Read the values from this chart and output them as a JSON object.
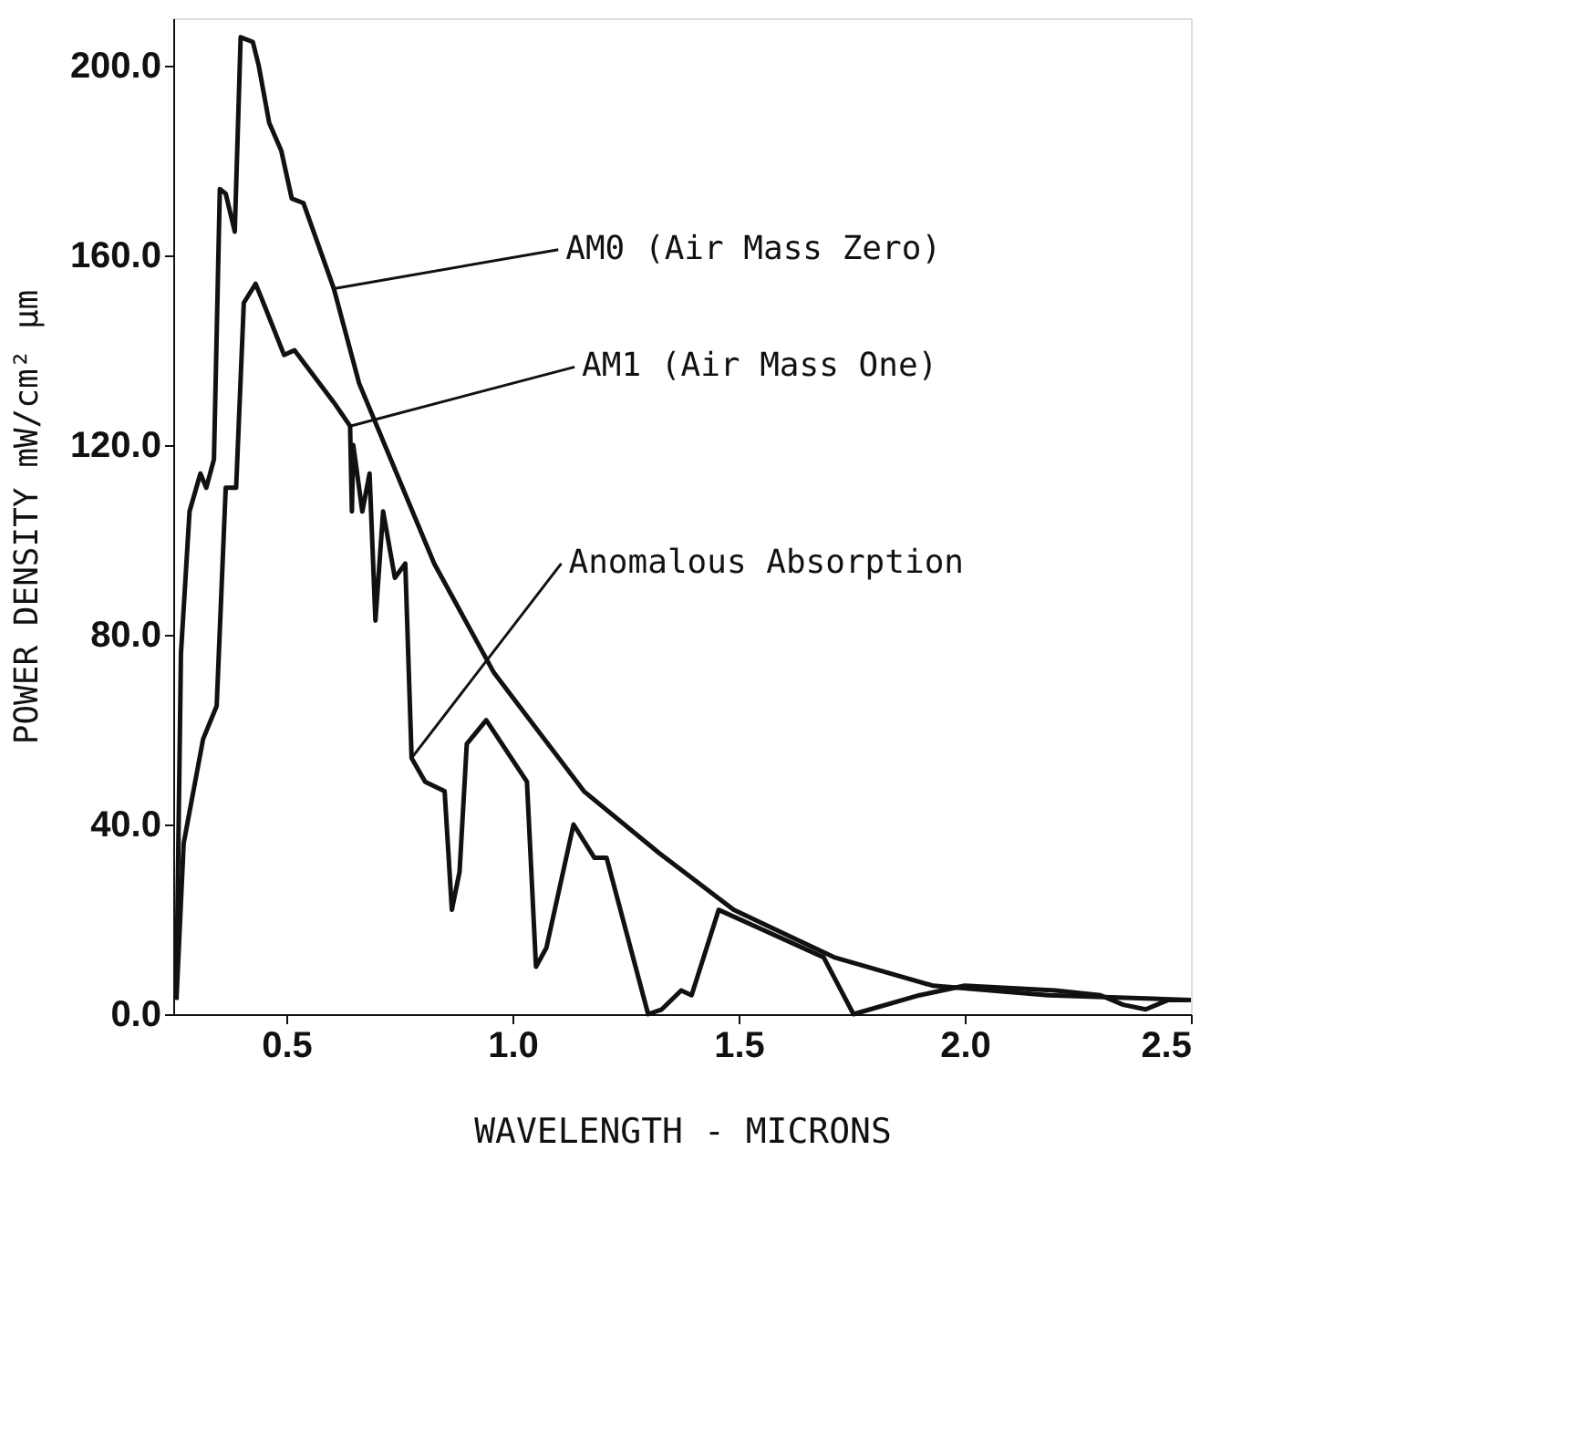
{
  "chart_data": {
    "type": "line",
    "xlabel": "WAVELENGTH - MICRONS",
    "ylabel": "POWER DENSITY  mW/cm² µm",
    "xlim": [
      0.25,
      2.5
    ],
    "ylim": [
      0,
      210
    ],
    "xticks": [
      0.5,
      {
        "value": 1,
        "label": "1.0"
      },
      1.5,
      {
        "value": 2,
        "label": "2.0"
      },
      2.5
    ],
    "yticks": [
      {
        "value": 0,
        "label": "0.0"
      },
      {
        "value": 40,
        "label": "40.0"
      },
      {
        "value": 80,
        "label": "80.0"
      },
      {
        "value": 120,
        "label": "120.0"
      },
      {
        "value": 160,
        "label": "160.0"
      },
      {
        "value": 200,
        "label": "200.0"
      }
    ],
    "grid": false,
    "legend": false,
    "marker": "none",
    "line_style": "solid",
    "series": [
      {
        "color": "#111111",
        "x": [
          0.257,
          0.267,
          0.286,
          0.31,
          0.323,
          0.34,
          0.353,
          0.366,
          0.386,
          0.399,
          0.426,
          0.439,
          0.462,
          0.489,
          0.512,
          0.538,
          0.605,
          0.661,
          0.827,
          0.959,
          1.158,
          1.324,
          1.489,
          1.711,
          1.93,
          2.185,
          2.5
        ],
        "values": [
          5,
          76,
          106,
          114,
          111,
          117,
          174,
          173,
          165,
          206,
          205,
          200,
          188,
          182,
          172,
          171,
          153,
          133,
          95,
          72,
          47,
          34,
          22,
          12,
          6,
          4,
          3
        ]
      },
      {
        "color": "#111111",
        "x": [
          0.257,
          0.273,
          0.316,
          0.346,
          0.366,
          0.389,
          0.406,
          0.432,
          0.445,
          0.495,
          0.518,
          0.605,
          0.641,
          0.645,
          0.648,
          0.668,
          0.684,
          0.697,
          0.714,
          0.74,
          0.763,
          0.777,
          0.807,
          0.85,
          0.866,
          0.883,
          0.899,
          0.942,
          1.032,
          1.052,
          1.075,
          1.135,
          1.181,
          1.208,
          1.3,
          1.33,
          1.373,
          1.396,
          1.456,
          1.688,
          1.754,
          1.9,
          2.0,
          2.2,
          2.3,
          2.35,
          2.4,
          2.45,
          2.5
        ],
        "values": [
          3,
          36,
          58,
          65,
          111,
          111,
          150,
          154,
          151,
          139,
          140,
          129,
          124,
          106,
          120,
          106,
          114,
          83,
          106,
          92,
          95,
          54,
          49,
          47,
          22,
          30,
          57,
          62,
          49,
          10,
          14,
          40,
          33,
          33,
          0,
          1,
          5,
          4,
          22,
          12,
          0,
          4,
          6,
          5,
          4,
          2,
          1,
          3,
          3
        ]
      }
    ],
    "annotations": [
      {
        "text": "AM0 (Air Mass Zero)",
        "x": 0.605,
        "y": 153
      },
      {
        "text": "AM1 (Air Mass One)",
        "x": 0.641,
        "y": 124
      },
      {
        "text": "Anomalous Absorption",
        "x": 0.777,
        "y": 54
      }
    ]
  }
}
